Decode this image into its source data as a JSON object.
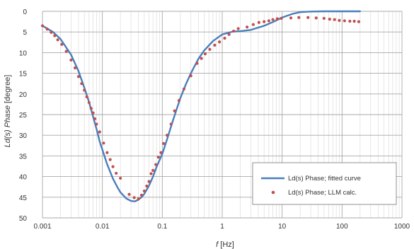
{
  "chart_data": {
    "type": "line",
    "xlabel_italic": "f",
    "xlabel_unit": " [Hz]",
    "ylabel_italic": "Ld(s) Phase",
    "ylabel_unit": " [degree]",
    "x_scale": "log",
    "xlim": [
      0.001,
      1000
    ],
    "ylim": [
      0,
      50
    ],
    "y_inverted": true,
    "x_ticks": [
      0.001,
      0.01,
      0.1,
      1,
      10,
      100,
      1000
    ],
    "x_tick_labels": [
      "0.001",
      "0.01",
      "0.1",
      "1",
      "10",
      "100",
      "1000"
    ],
    "y_ticks": [
      0,
      5,
      10,
      15,
      20,
      25,
      30,
      35,
      40,
      45,
      50
    ],
    "y_tick_labels": [
      "0",
      "5",
      "10",
      "15",
      "20",
      "25",
      "30",
      "35",
      "40",
      "45",
      "50"
    ],
    "grid": true,
    "legend_position": "bottom-right",
    "series": [
      {
        "name": "Ld(s) Phase; fitted curve",
        "kind": "line",
        "color": "#4a7ebb",
        "x": [
          0.001,
          0.0015,
          0.002,
          0.003,
          0.004,
          0.005,
          0.006,
          0.007,
          0.008,
          0.009,
          0.01,
          0.012,
          0.015,
          0.018,
          0.02,
          0.025,
          0.03,
          0.035,
          0.04,
          0.045,
          0.05,
          0.06,
          0.07,
          0.08,
          0.1,
          0.12,
          0.15,
          0.2,
          0.25,
          0.3,
          0.4,
          0.5,
          0.7,
          1,
          1.5,
          2,
          3,
          5,
          7,
          10,
          15,
          20,
          30,
          50,
          100,
          200
        ],
        "y": [
          3.5,
          5,
          6.7,
          10.5,
          14.5,
          18.5,
          22,
          25.5,
          28.5,
          31.5,
          33.5,
          37,
          40.5,
          42.7,
          43.8,
          45.3,
          45.9,
          46,
          45.6,
          45,
          44.2,
          42.2,
          40,
          37.7,
          34.5,
          31,
          26.5,
          21,
          17.5,
          15,
          11.5,
          9.5,
          7.2,
          5.6,
          4.9,
          4.8,
          4.5,
          3.5,
          2.6,
          1.5,
          0.6,
          0.2,
          0.05,
          0,
          0,
          0
        ]
      },
      {
        "name": "Ld(s) Phase; LLM calc.",
        "kind": "scatter",
        "color": "#c0504d",
        "x": [
          0.001,
          0.0012,
          0.0014,
          0.0016,
          0.0018,
          0.0021,
          0.0025,
          0.003,
          0.0035,
          0.004,
          0.0045,
          0.005,
          0.0055,
          0.006,
          0.0065,
          0.007,
          0.0075,
          0.008,
          0.009,
          0.0105,
          0.012,
          0.0135,
          0.015,
          0.017,
          0.02,
          0.028,
          0.034,
          0.04,
          0.045,
          0.05,
          0.055,
          0.06,
          0.065,
          0.07,
          0.078,
          0.086,
          0.095,
          0.105,
          0.12,
          0.14,
          0.16,
          0.19,
          0.23,
          0.3,
          0.38,
          0.45,
          0.52,
          0.62,
          0.75,
          0.9,
          1.1,
          1.3,
          1.55,
          1.85,
          2.6,
          3.3,
          4.1,
          5,
          6,
          7,
          8.3,
          9.7,
          14,
          19,
          27,
          37,
          50,
          62,
          75,
          90,
          110,
          135,
          160,
          190
        ],
        "y": [
          3.5,
          4.3,
          5.1,
          5.9,
          6.9,
          8.0,
          9.7,
          11.8,
          13.7,
          15.8,
          17.5,
          19.1,
          20.7,
          22.1,
          23.5,
          24.6,
          26.0,
          27.3,
          29.2,
          31.9,
          34.2,
          35.9,
          37.6,
          39.2,
          40.4,
          44.3,
          45.1,
          45.4,
          44.5,
          43.5,
          42.3,
          41.2,
          39.3,
          38.5,
          37.1,
          35.3,
          34.2,
          32.0,
          30.0,
          27.3,
          24.1,
          21.6,
          18.8,
          15.6,
          12.6,
          11.4,
          10.3,
          9.2,
          8.2,
          7.4,
          6.5,
          5.6,
          4.8,
          4.2,
          3.8,
          3.2,
          2.7,
          2.5,
          2.3,
          2.0,
          1.8,
          1.7,
          1.6,
          1.5,
          1.5,
          1.6,
          1.7,
          1.9,
          2.0,
          2.2,
          2.3,
          2.4,
          2.4,
          2.5
        ]
      }
    ]
  }
}
